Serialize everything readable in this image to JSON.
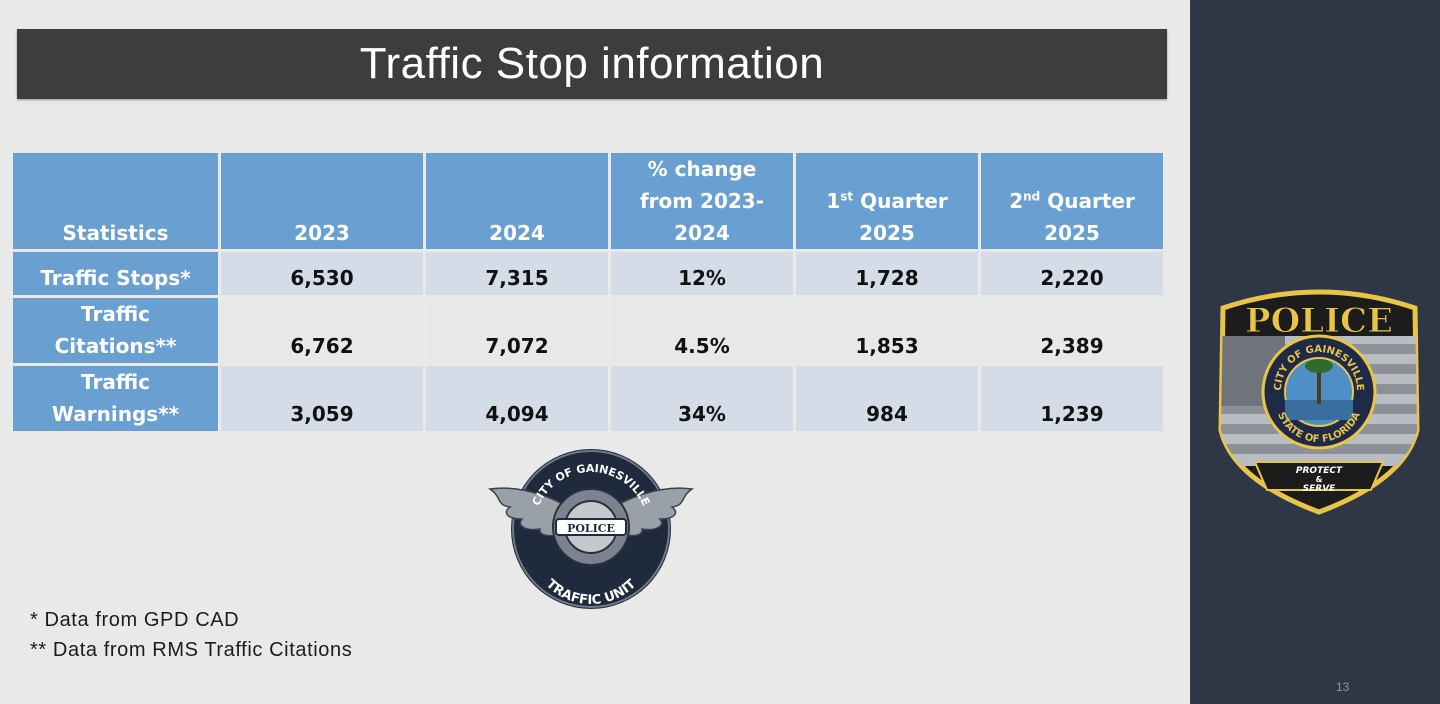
{
  "title": "Traffic Stop information",
  "table": {
    "headers": {
      "statistics": "Statistics",
      "y2023": "2023",
      "y2024": "2024",
      "pct_line1": "% change",
      "pct_line2": "from 2023-",
      "pct_line3": "2024",
      "q1_num": "1",
      "q1_sup": "st",
      "q1_word": " Quarter",
      "q1_year": "2025",
      "q2_num": "2",
      "q2_sup": "nd",
      "q2_word": " Quarter",
      "q2_year": "2025"
    },
    "rows": [
      {
        "label_line1": "Traffic Stops*",
        "label_line2": "",
        "y2023": "6,530",
        "y2024": "7,315",
        "pct_change": "12%",
        "q1_2025": "1,728",
        "q2_2025": "2,220"
      },
      {
        "label_line1": "Traffic",
        "label_line2": "Citations**",
        "y2023": "6,762",
        "y2024": "7,072",
        "pct_change": "4.5%",
        "q1_2025": "1,853",
        "q2_2025": "2,389"
      },
      {
        "label_line1": "Traffic",
        "label_line2": "Warnings**",
        "y2023": "3,059",
        "y2024": "4,094",
        "pct_change": "34%",
        "q1_2025": "984",
        "q2_2025": "1,239"
      }
    ]
  },
  "footnotes": [
    "* Data from GPD CAD",
    "** Data from RMS Traffic Citations"
  ],
  "traffic_logo": {
    "top_text": "CITY OF GAINESVILLE",
    "center_text": "POLICE",
    "bottom_text": "TRAFFIC UNIT"
  },
  "police_badge": {
    "header": "POLICE",
    "ring_top": "CITY OF GAINESVILLE",
    "ring_bottom": "STATE OF FLORIDA",
    "motto_line1": "PROTECT",
    "motto_line2": "&",
    "motto_line3": "SERVE"
  },
  "page_number": "13",
  "colors": {
    "title_bar": "#3d3d3b",
    "header_blue": "#6a9fd1",
    "row_light_blue": "#d3dce7",
    "row_grey": "#e7e9e6",
    "side_panel": "#2f3747",
    "badge_gold": "#e8c547"
  }
}
